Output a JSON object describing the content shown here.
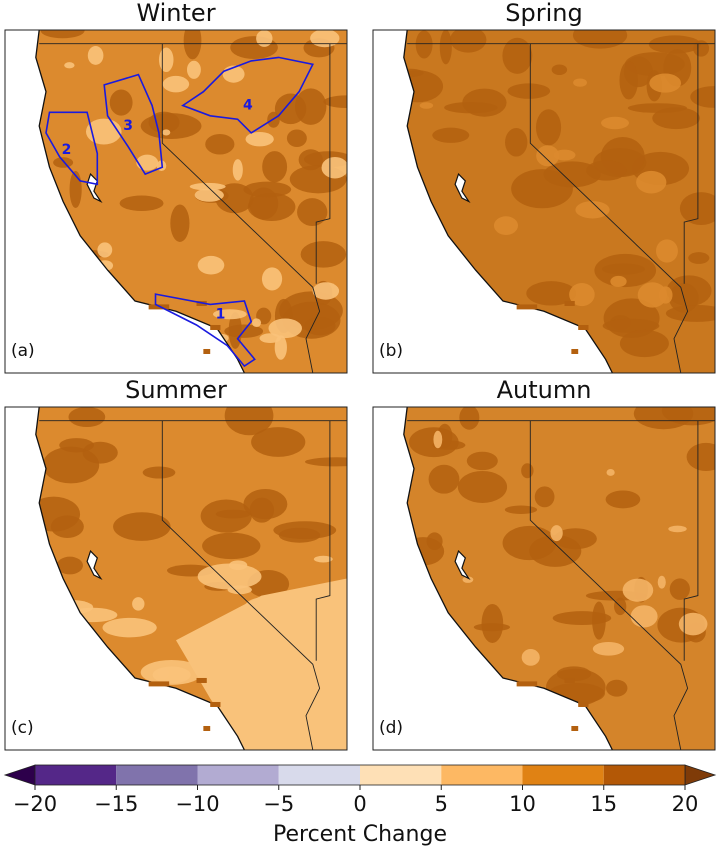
{
  "panels": [
    {
      "title": "Winter",
      "label": "(a)"
    },
    {
      "title": "Spring",
      "label": "(b)"
    },
    {
      "title": "Summer",
      "label": "(c)"
    },
    {
      "title": "Autumn",
      "label": "(d)"
    }
  ],
  "regions": [
    "1",
    "2",
    "3",
    "4"
  ],
  "colorbar": {
    "label": "Percent Change",
    "ticks": [
      {
        "value": -20,
        "label": "−20"
      },
      {
        "value": -15,
        "label": "−15"
      },
      {
        "value": -10,
        "label": "−10"
      },
      {
        "value": -5,
        "label": "−5"
      },
      0,
      5,
      10,
      15,
      20
    ],
    "colors": [
      "#542788",
      "#8073ac",
      "#b2abd2",
      "#d8daeb",
      "#fee0b6",
      "#fdb863",
      "#e08214",
      "#b35806"
    ],
    "under_color": "#2d004b",
    "over_color": "#7f3b08"
  }
}
